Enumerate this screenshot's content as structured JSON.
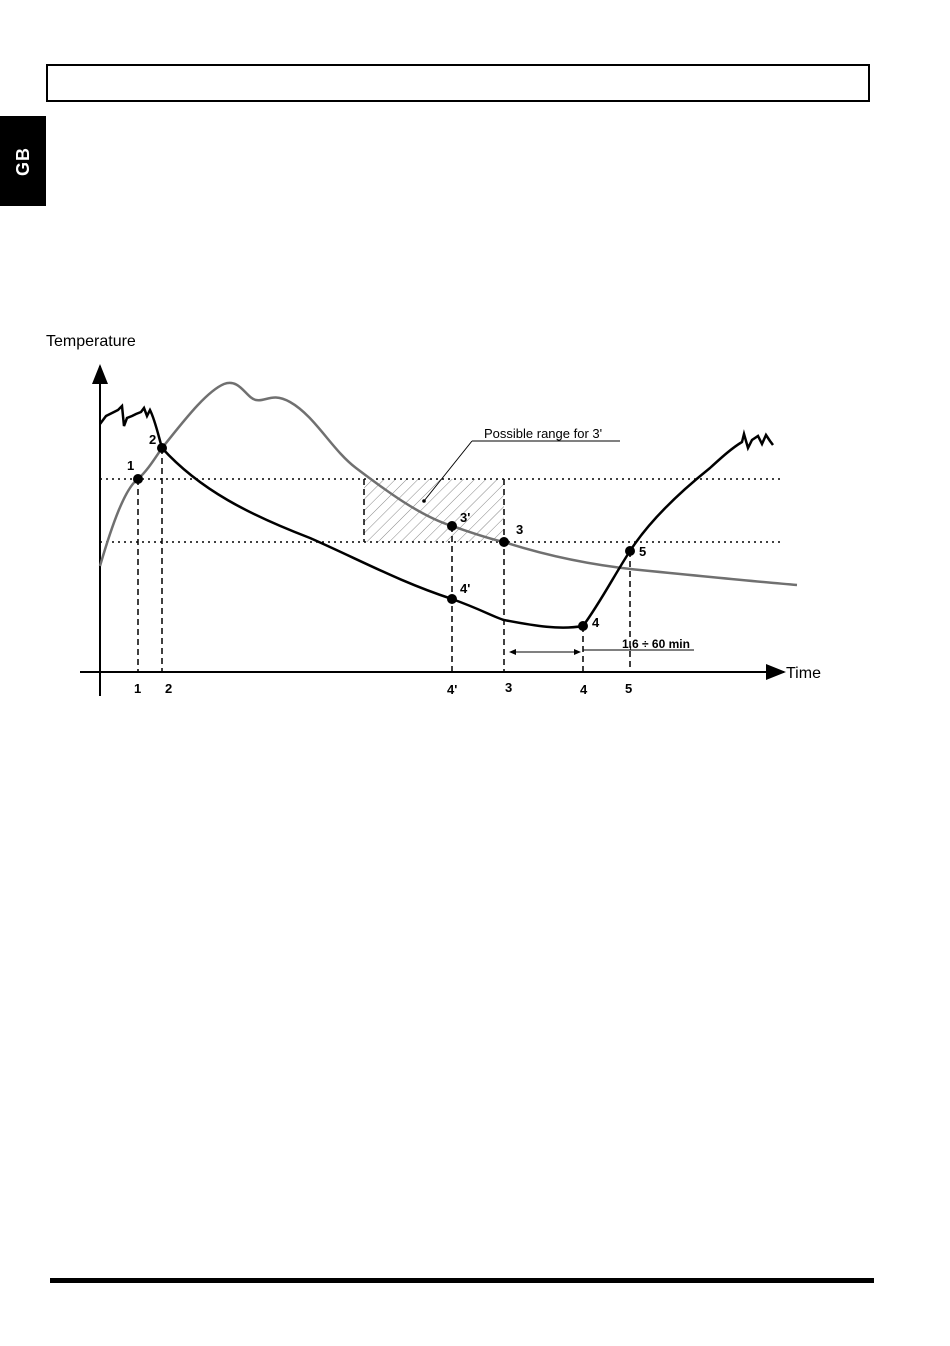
{
  "header": {
    "title": ""
  },
  "language_tab": {
    "label": "GB"
  },
  "diagram": {
    "y_axis_label": "Temperature",
    "x_axis_label": "Time",
    "range_note": "Possible range for 3'",
    "interval_label": "1,6 ÷ 60 min",
    "curve_points": [
      {
        "id": "p1",
        "label": "1"
      },
      {
        "id": "p2",
        "label": "2"
      },
      {
        "id": "p3p",
        "label": "3'"
      },
      {
        "id": "p3",
        "label": "3"
      },
      {
        "id": "p4p",
        "label": "4'"
      },
      {
        "id": "p4",
        "label": "4"
      },
      {
        "id": "p5",
        "label": "5"
      }
    ],
    "time_ticks": [
      "1",
      "2",
      "4'",
      "3",
      "4",
      "5"
    ],
    "colors": {
      "curve_a": "#000000",
      "curve_b": "#707070",
      "hatch": "#888888"
    }
  }
}
